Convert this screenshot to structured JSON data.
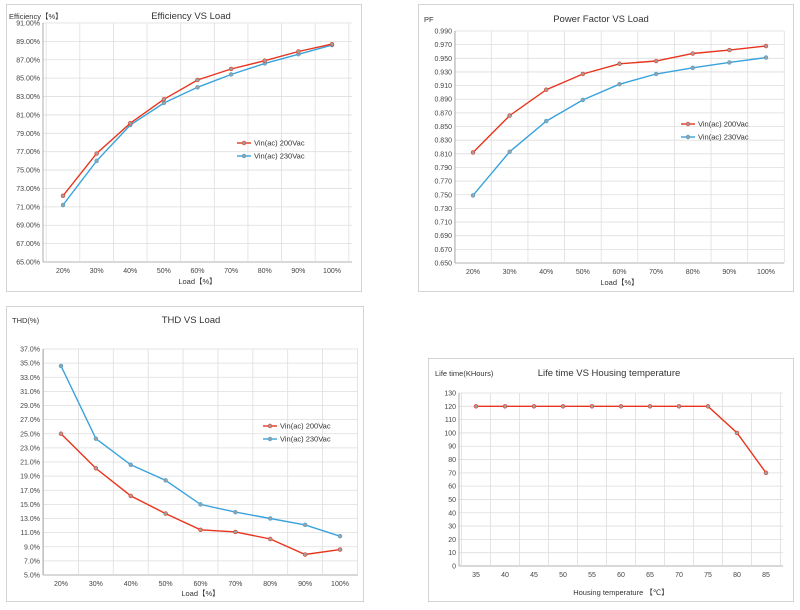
{
  "colors": {
    "red": "#e8341c",
    "blue": "#3aa3dc",
    "marker": "#a0a0a0"
  },
  "chart_data": [
    {
      "type": "line",
      "title": "Efficiency VS Load",
      "ylabel": "Efficiency【%】",
      "xlabel": "Load【%】",
      "categories": [
        "20%",
        "30%",
        "40%",
        "50%",
        "60%",
        "70%",
        "80%",
        "90%",
        "100%"
      ],
      "yticks": [
        "65.00%",
        "67.00%",
        "69.00%",
        "71.00%",
        "73.00%",
        "75.00%",
        "77.00%",
        "79.00%",
        "81.00%",
        "83.00%",
        "85.00%",
        "87.00%",
        "89.00%",
        "91.00%"
      ],
      "ylim": [
        65,
        91
      ],
      "grid": true,
      "legend": "right",
      "series": [
        {
          "name": "Vin(ac) 200Vac",
          "values": [
            72.2,
            76.8,
            80.1,
            82.7,
            84.8,
            86.0,
            86.9,
            87.9,
            88.7
          ]
        },
        {
          "name": "Vin(ac) 230Vac",
          "values": [
            71.2,
            76.0,
            79.9,
            82.3,
            84.0,
            85.4,
            86.6,
            87.6,
            88.6
          ]
        }
      ]
    },
    {
      "type": "line",
      "title": "Power Factor VS Load",
      "ylabel": "PF",
      "xlabel": "Load【%】",
      "categories": [
        "20%",
        "30%",
        "40%",
        "50%",
        "60%",
        "70%",
        "80%",
        "90%",
        "100%"
      ],
      "yticks": [
        "0.650",
        "0.670",
        "0.690",
        "0.710",
        "0.730",
        "0.750",
        "0.770",
        "0.790",
        "0.810",
        "0.830",
        "0.850",
        "0.870",
        "0.890",
        "0.910",
        "0.930",
        "0.950",
        "0.970",
        "0.990"
      ],
      "ylim": [
        0.65,
        0.99
      ],
      "grid": true,
      "legend": "right",
      "series": [
        {
          "name": "Vin(ac) 200Vac",
          "values": [
            0.812,
            0.866,
            0.904,
            0.927,
            0.942,
            0.946,
            0.957,
            0.962,
            0.968
          ]
        },
        {
          "name": "Vin(ac) 230Vac",
          "values": [
            0.749,
            0.813,
            0.858,
            0.889,
            0.912,
            0.927,
            0.936,
            0.944,
            0.951
          ]
        }
      ]
    },
    {
      "type": "line",
      "title": "THD VS Load",
      "ylabel": "THD(%)",
      "xlabel": "Load【%】",
      "categories": [
        "20%",
        "30%",
        "40%",
        "50%",
        "60%",
        "70%",
        "80%",
        "90%",
        "100%"
      ],
      "yticks": [
        "5.0%",
        "7.0%",
        "9.0%",
        "11.0%",
        "13.0%",
        "15.0%",
        "17.0%",
        "19.0%",
        "21.0%",
        "23.0%",
        "25.0%",
        "27.0%",
        "29.0%",
        "31.0%",
        "33.0%",
        "35.0%",
        "37.0%"
      ],
      "ylim": [
        5,
        37
      ],
      "grid": true,
      "legend": "right",
      "series": [
        {
          "name": "Vin(ac) 200Vac",
          "values": [
            25.0,
            20.1,
            16.2,
            13.7,
            11.4,
            11.1,
            10.1,
            7.9,
            8.6
          ]
        },
        {
          "name": "Vin(ac) 230Vac",
          "values": [
            34.6,
            24.3,
            20.6,
            18.4,
            15.0,
            13.9,
            13.0,
            12.1,
            10.5
          ]
        }
      ]
    },
    {
      "type": "line",
      "title": "Life time VS Housing temperature",
      "ylabel": "Life time(KHours)",
      "xlabel": "Housing temperature 【℃】",
      "categories": [
        "35",
        "40",
        "45",
        "50",
        "55",
        "60",
        "65",
        "70",
        "75",
        "80",
        "85"
      ],
      "yticks": [
        "0",
        "10",
        "20",
        "30",
        "40",
        "50",
        "60",
        "70",
        "80",
        "90",
        "100",
        "110",
        "120",
        "130"
      ],
      "ylim": [
        0,
        130
      ],
      "grid": true,
      "legend": "none",
      "series": [
        {
          "values": [
            120,
            120,
            120,
            120,
            120,
            120,
            120,
            120,
            120,
            100,
            70
          ]
        }
      ]
    }
  ]
}
